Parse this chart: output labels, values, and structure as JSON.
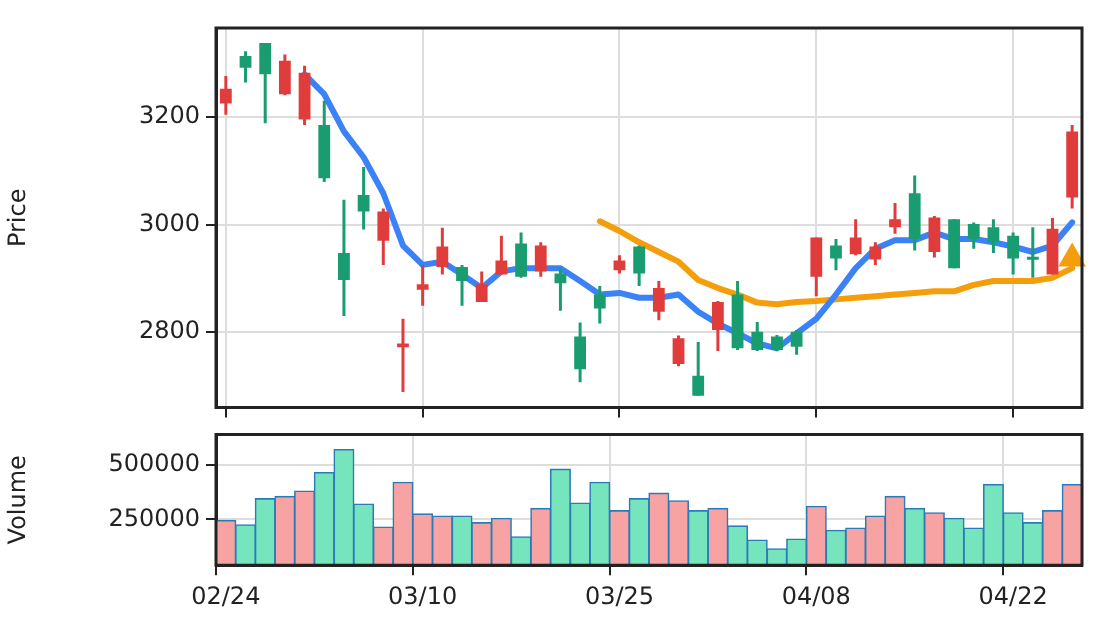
{
  "chart_data": [
    {
      "type": "candlestick",
      "ylabel": "Price",
      "categories": [
        null,
        null,
        null,
        null,
        null,
        null,
        null,
        null,
        null,
        null,
        null,
        null,
        null,
        null,
        null,
        null,
        null,
        null,
        null,
        null,
        null,
        null,
        null,
        null,
        null,
        null,
        null,
        null,
        null,
        null,
        null,
        null,
        null,
        null,
        null,
        null,
        null,
        null,
        null,
        null,
        null,
        null,
        null,
        null
      ],
      "ohlc": [
        [
          3225,
          3276,
          3204,
          3252
        ],
        [
          3313,
          3322,
          3264,
          3291
        ],
        [
          3337,
          3337,
          3188,
          3279
        ],
        [
          3242,
          3316,
          3240,
          3304
        ],
        [
          3195,
          3295,
          3185,
          3282
        ],
        [
          3185,
          3230,
          3079,
          3086
        ],
        [
          2947,
          3046,
          2830,
          2897
        ],
        [
          3055,
          3107,
          2991,
          3024
        ],
        [
          2970,
          3030,
          2925,
          3024
        ],
        [
          2772,
          2825,
          2689,
          2779
        ],
        [
          2879,
          2925,
          2849,
          2889
        ],
        [
          2921,
          2994,
          2907,
          2959
        ],
        [
          2921,
          2925,
          2849,
          2895
        ],
        [
          2856,
          2913,
          2856,
          2889
        ],
        [
          2907,
          2979,
          2907,
          2933
        ],
        [
          2965,
          2985,
          2901,
          2903
        ],
        [
          2913,
          2967,
          2903,
          2961
        ],
        [
          2909,
          2919,
          2840,
          2891
        ],
        [
          2792,
          2818,
          2707,
          2731
        ],
        [
          2870,
          2886,
          2816,
          2844
        ],
        [
          2915,
          2943,
          2909,
          2933
        ],
        [
          2959,
          2961,
          2886,
          2909
        ],
        [
          2838,
          2895,
          2822,
          2882
        ],
        [
          2741,
          2794,
          2737,
          2789
        ],
        [
          2719,
          2782,
          2682,
          2682
        ],
        [
          2804,
          2858,
          2765,
          2856
        ],
        [
          2870,
          2895,
          2767,
          2770
        ],
        [
          2801,
          2819,
          2765,
          2767
        ],
        [
          2792,
          2795,
          2765,
          2767
        ],
        [
          2801,
          2804,
          2758,
          2773
        ],
        [
          2903,
          2976,
          2867,
          2976
        ],
        [
          2961,
          2973,
          2915,
          2937
        ],
        [
          2945,
          3010,
          2943,
          2976
        ],
        [
          2935,
          2967,
          2925,
          2959
        ],
        [
          2995,
          3040,
          2983,
          3010
        ],
        [
          3058,
          3091,
          2952,
          2973
        ],
        [
          2949,
          3016,
          2939,
          3013
        ],
        [
          3010,
          3010,
          2919,
          2919
        ],
        [
          3001,
          3004,
          2955,
          2973
        ],
        [
          2995,
          3010,
          2947,
          2967
        ],
        [
          2979,
          2985,
          2907,
          2937
        ],
        [
          2940,
          2995,
          2901,
          2935
        ],
        [
          2907,
          3012,
          2907,
          2992
        ],
        [
          3050,
          3185,
          3030,
          3173
        ]
      ],
      "colors": [
        "#e03c3c",
        "#189c70",
        "#189c70",
        "#e03c3c",
        "#e03c3c",
        "#189c70",
        "#189c70",
        "#189c70",
        "#e03c3c",
        "#e03c3c",
        "#e03c3c",
        "#e03c3c",
        "#189c70",
        "#e03c3c",
        "#e03c3c",
        "#189c70",
        "#e03c3c",
        "#189c70",
        "#189c70",
        "#189c70",
        "#e03c3c",
        "#189c70",
        "#e03c3c",
        "#e03c3c",
        "#189c70",
        "#e03c3c",
        "#189c70",
        "#189c70",
        "#189c70",
        "#189c70",
        "#e03c3c",
        "#189c70",
        "#e03c3c",
        "#e03c3c",
        "#e03c3c",
        "#189c70",
        "#e03c3c",
        "#189c70",
        "#189c70",
        "#189c70",
        "#189c70",
        "#189c70",
        "#e03c3c",
        "#e03c3c"
      ],
      "series": [
        {
          "type": "line",
          "color": "#3b82f6",
          "values": [
            null,
            null,
            null,
            null,
            3279,
            3242,
            3173,
            3125,
            3058,
            2961,
            2925,
            2931,
            2907,
            2882,
            2913,
            2919,
            2919,
            2919,
            2895,
            2870,
            2873,
            2864,
            2864,
            2870,
            2838,
            2816,
            2798,
            2779,
            2770,
            2798,
            2825,
            2870,
            2919,
            2955,
            2971,
            2971,
            2985,
            2973,
            2973,
            2967,
            2959,
            2949,
            2961,
            3004
          ]
        },
        {
          "type": "line",
          "color": "#f59e0b",
          "values": [
            null,
            null,
            null,
            null,
            null,
            null,
            null,
            null,
            null,
            null,
            null,
            null,
            null,
            null,
            null,
            null,
            null,
            null,
            null,
            3006,
            2988,
            2967,
            2949,
            2931,
            2897,
            2882,
            2870,
            2855,
            2852,
            2856,
            2858,
            2861,
            2864,
            2867,
            2870,
            2873,
            2876,
            2876,
            2888,
            2895,
            2895,
            2895,
            2901,
            2919
          ]
        },
        {
          "type": "scatter",
          "marker": "triangle",
          "color": "#f59e0b",
          "values": [
            null,
            null,
            null,
            null,
            null,
            null,
            null,
            null,
            null,
            null,
            null,
            null,
            null,
            null,
            null,
            null,
            null,
            null,
            null,
            null,
            null,
            null,
            null,
            null,
            null,
            null,
            null,
            null,
            null,
            null,
            null,
            null,
            null,
            null,
            null,
            null,
            null,
            null,
            null,
            null,
            null,
            null,
            null,
            2937
          ]
        }
      ],
      "ylim": [
        2660,
        3365
      ],
      "yticks": [
        2800,
        3000,
        3200
      ],
      "grid": true,
      "tick_labels": "y"
    },
    {
      "type": "bar",
      "ylabel": "Volume",
      "categories": [
        "02/24",
        null,
        null,
        null,
        null,
        null,
        null,
        null,
        null,
        null,
        "03/10",
        null,
        null,
        null,
        null,
        null,
        null,
        null,
        null,
        null,
        "03/25",
        null,
        null,
        null,
        null,
        null,
        null,
        null,
        null,
        null,
        "04/08",
        null,
        null,
        null,
        null,
        null,
        null,
        null,
        null,
        null,
        "04/22",
        null,
        null,
        null
      ],
      "values": [
        245000,
        225000,
        345000,
        355000,
        380000,
        465000,
        570000,
        320000,
        215000,
        420000,
        275000,
        265000,
        265000,
        235000,
        255000,
        170000,
        300000,
        480000,
        325000,
        420000,
        290000,
        345000,
        370000,
        335000,
        290000,
        300000,
        220000,
        155000,
        115000,
        160000,
        310000,
        200000,
        210000,
        265000,
        355000,
        300000,
        280000,
        255000,
        210000,
        410000,
        280000,
        235000,
        290000,
        410000
      ],
      "colors": [
        "#f7a3a3",
        "#76e4bd",
        "#76e4bd",
        "#f7a3a3",
        "#f7a3a3",
        "#76e4bd",
        "#76e4bd",
        "#76e4bd",
        "#f7a3a3",
        "#f7a3a3",
        "#f7a3a3",
        "#f7a3a3",
        "#76e4bd",
        "#f7a3a3",
        "#f7a3a3",
        "#76e4bd",
        "#f7a3a3",
        "#76e4bd",
        "#76e4bd",
        "#76e4bd",
        "#f7a3a3",
        "#76e4bd",
        "#f7a3a3",
        "#f7a3a3",
        "#76e4bd",
        "#f7a3a3",
        "#76e4bd",
        "#76e4bd",
        "#76e4bd",
        "#76e4bd",
        "#f7a3a3",
        "#76e4bd",
        "#f7a3a3",
        "#f7a3a3",
        "#f7a3a3",
        "#76e4bd",
        "#f7a3a3",
        "#76e4bd",
        "#76e4bd",
        "#76e4bd",
        "#76e4bd",
        "#76e4bd",
        "#f7a3a3",
        "#f7a3a3"
      ],
      "ylim": [
        40000,
        640000
      ],
      "yticks": [
        250000,
        500000
      ],
      "grid": true
    }
  ]
}
